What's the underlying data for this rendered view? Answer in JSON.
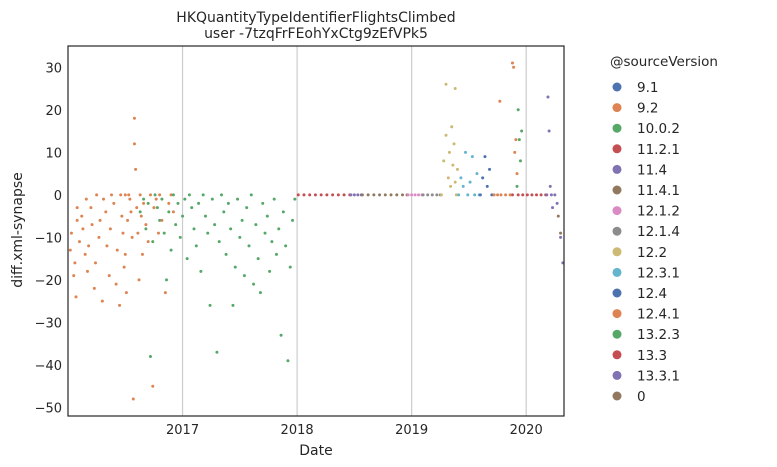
{
  "chart_data": {
    "type": "scatter",
    "title": "HKQuantityTypeIdentifierFlightsClimbed",
    "subtitle": "user -7tzqFrFEohYxCtg9zEfVPk5",
    "xlabel": "Date",
    "ylabel": "diff.xml-synapse",
    "xlim": [
      2016.0,
      2020.33
    ],
    "ylim": [
      -52,
      35
    ],
    "xticks": [
      2017,
      2018,
      2019,
      2020
    ],
    "yticks": [
      30,
      20,
      10,
      0,
      -10,
      -20,
      -30,
      -40,
      -50
    ],
    "vgrid": [
      2017,
      2018,
      2019,
      2020
    ],
    "legend_title": "@sourceVersion",
    "legend_position": "outside-right",
    "series": [
      {
        "name": "9.1",
        "color": "#4c72b0",
        "points": []
      },
      {
        "name": "9.2",
        "color": "#dd8452",
        "points": [
          [
            2016.02,
            -13
          ],
          [
            2016.03,
            -9
          ],
          [
            2016.05,
            -19
          ],
          [
            2016.06,
            -16
          ],
          [
            2016.07,
            -24
          ],
          [
            2016.08,
            -3
          ],
          [
            2016.08,
            -6
          ],
          [
            2016.1,
            -11
          ],
          [
            2016.12,
            -5
          ],
          [
            2016.13,
            -8
          ],
          [
            2016.15,
            -14
          ],
          [
            2016.16,
            -1
          ],
          [
            2016.17,
            -18
          ],
          [
            2016.18,
            -12
          ],
          [
            2016.2,
            -3
          ],
          [
            2016.21,
            -7
          ],
          [
            2016.23,
            -22
          ],
          [
            2016.24,
            -16
          ],
          [
            2016.25,
            0
          ],
          [
            2016.27,
            -10
          ],
          [
            2016.28,
            -6
          ],
          [
            2016.3,
            -25
          ],
          [
            2016.31,
            -1
          ],
          [
            2016.33,
            -4
          ],
          [
            2016.34,
            -12
          ],
          [
            2016.36,
            -19
          ],
          [
            2016.37,
            -8
          ],
          [
            2016.38,
            0
          ],
          [
            2016.4,
            -2
          ],
          [
            2016.42,
            -21
          ],
          [
            2016.43,
            -13
          ],
          [
            2016.45,
            -26
          ],
          [
            2016.46,
            0
          ],
          [
            2016.47,
            -5
          ],
          [
            2016.48,
            -9
          ],
          [
            2016.49,
            -17
          ],
          [
            2016.5,
            0
          ],
          [
            2016.5,
            -14
          ],
          [
            2016.51,
            -23
          ],
          [
            2016.52,
            -6
          ],
          [
            2016.53,
            0
          ],
          [
            2016.54,
            -1
          ],
          [
            2016.55,
            -4
          ],
          [
            2016.56,
            -10
          ],
          [
            2016.57,
            -48
          ],
          [
            2016.58,
            18
          ],
          [
            2016.58,
            12
          ],
          [
            2016.59,
            6
          ],
          [
            2016.6,
            -3
          ],
          [
            2016.61,
            -9
          ],
          [
            2016.62,
            -20
          ],
          [
            2016.63,
            0
          ],
          [
            2016.64,
            -5
          ],
          [
            2016.65,
            -14
          ],
          [
            2016.66,
            -2
          ],
          [
            2016.68,
            -7
          ],
          [
            2016.7,
            -11
          ],
          [
            2016.72,
            0
          ],
          [
            2016.74,
            -45
          ],
          [
            2016.75,
            -3
          ],
          [
            2016.77,
            -1
          ],
          [
            2016.79,
            -9
          ],
          [
            2016.8,
            0
          ],
          [
            2016.82,
            -6
          ],
          [
            2016.85,
            -23
          ],
          [
            2016.88,
            -2
          ],
          [
            2016.9,
            0
          ],
          [
            2016.92,
            -4
          ]
        ]
      },
      {
        "name": "10.0.2",
        "color": "#55a868",
        "points": [
          [
            2016.63,
            -4
          ],
          [
            2016.66,
            -1
          ],
          [
            2016.68,
            -8
          ],
          [
            2016.7,
            -2
          ],
          [
            2016.72,
            -38
          ],
          [
            2016.74,
            -11
          ],
          [
            2016.76,
            0
          ],
          [
            2016.78,
            -3
          ],
          [
            2016.8,
            -6
          ],
          [
            2016.82,
            -1
          ],
          [
            2016.84,
            -9
          ],
          [
            2016.86,
            -20
          ],
          [
            2016.88,
            -4
          ],
          [
            2016.9,
            -13
          ],
          [
            2016.92,
            0
          ],
          [
            2016.94,
            -7
          ],
          [
            2016.96,
            -2
          ],
          [
            2016.98,
            -10
          ],
          [
            2017.0,
            -5
          ],
          [
            2017.02,
            -1
          ],
          [
            2017.04,
            -15
          ],
          [
            2017.06,
            0
          ],
          [
            2017.08,
            -3
          ],
          [
            2017.1,
            -8
          ],
          [
            2017.12,
            -12
          ],
          [
            2017.14,
            -2
          ],
          [
            2017.16,
            -18
          ],
          [
            2017.18,
            0
          ],
          [
            2017.2,
            -5
          ],
          [
            2017.22,
            -9
          ],
          [
            2017.24,
            -26
          ],
          [
            2017.26,
            -1
          ],
          [
            2017.28,
            -7
          ],
          [
            2017.3,
            -37
          ],
          [
            2017.32,
            -11
          ],
          [
            2017.34,
            0
          ],
          [
            2017.36,
            -4
          ],
          [
            2017.38,
            -14
          ],
          [
            2017.4,
            -2
          ],
          [
            2017.42,
            -8
          ],
          [
            2017.44,
            -26
          ],
          [
            2017.46,
            -17
          ],
          [
            2017.48,
            -1
          ],
          [
            2017.5,
            -10
          ],
          [
            2017.52,
            -6
          ],
          [
            2017.54,
            -19
          ],
          [
            2017.56,
            -3
          ],
          [
            2017.58,
            -12
          ],
          [
            2017.6,
            0
          ],
          [
            2017.62,
            -21
          ],
          [
            2017.64,
            -7
          ],
          [
            2017.66,
            -15
          ],
          [
            2017.68,
            -23
          ],
          [
            2017.7,
            -2
          ],
          [
            2017.72,
            -9
          ],
          [
            2017.74,
            -5
          ],
          [
            2017.76,
            -18
          ],
          [
            2017.78,
            -11
          ],
          [
            2017.8,
            -1
          ],
          [
            2017.82,
            -14
          ],
          [
            2017.84,
            -8
          ],
          [
            2017.86,
            -33
          ],
          [
            2017.88,
            -4
          ],
          [
            2017.9,
            -12
          ],
          [
            2017.92,
            -39
          ],
          [
            2017.94,
            -17
          ],
          [
            2017.96,
            -6
          ],
          [
            2017.98,
            -1
          ]
        ]
      },
      {
        "name": "11.2.1",
        "color": "#c44e52",
        "points": [
          [
            2018.01,
            0
          ],
          [
            2018.06,
            0
          ],
          [
            2018.11,
            0
          ],
          [
            2018.16,
            0
          ],
          [
            2018.21,
            0
          ],
          [
            2018.26,
            0
          ],
          [
            2018.31,
            0
          ],
          [
            2018.36,
            0
          ],
          [
            2018.41,
            0
          ],
          [
            2018.46,
            0
          ],
          [
            2019.88,
            0
          ],
          [
            2019.93,
            0
          ]
        ]
      },
      {
        "name": "11.4",
        "color": "#8172b3",
        "points": [
          [
            2018.47,
            0
          ],
          [
            2018.5,
            0
          ],
          [
            2018.53,
            0
          ],
          [
            2018.56,
            0
          ]
        ]
      },
      {
        "name": "11.4.1",
        "color": "#937860",
        "points": [
          [
            2018.57,
            0
          ],
          [
            2018.62,
            0
          ],
          [
            2018.67,
            0
          ],
          [
            2018.72,
            0
          ],
          [
            2018.77,
            0
          ],
          [
            2018.82,
            0
          ],
          [
            2018.87,
            0
          ],
          [
            2018.92,
            0
          ],
          [
            2018.96,
            0
          ]
        ]
      },
      {
        "name": "12.1.2",
        "color": "#da8bc3",
        "points": [
          [
            2018.97,
            0
          ],
          [
            2019.0,
            0
          ],
          [
            2019.03,
            0
          ],
          [
            2019.06,
            0
          ],
          [
            2019.09,
            0
          ]
        ]
      },
      {
        "name": "12.1.4",
        "color": "#8c8c8c",
        "points": [
          [
            2019.1,
            0
          ],
          [
            2019.14,
            0
          ],
          [
            2019.18,
            0
          ],
          [
            2019.22,
            0
          ],
          [
            2019.25,
            0
          ]
        ]
      },
      {
        "name": "12.2",
        "color": "#ccb974",
        "points": [
          [
            2019.26,
            0
          ],
          [
            2019.28,
            8
          ],
          [
            2019.3,
            26
          ],
          [
            2019.3,
            14
          ],
          [
            2019.32,
            4
          ],
          [
            2019.33,
            10
          ],
          [
            2019.34,
            2
          ],
          [
            2019.35,
            16
          ],
          [
            2019.36,
            7
          ],
          [
            2019.37,
            12
          ],
          [
            2019.38,
            25
          ],
          [
            2019.38,
            3
          ],
          [
            2019.39,
            0
          ],
          [
            2019.4,
            6
          ]
        ]
      },
      {
        "name": "12.3.1",
        "color": "#64b5cd",
        "points": [
          [
            2019.41,
            0
          ],
          [
            2019.43,
            4
          ],
          [
            2019.45,
            2
          ],
          [
            2019.47,
            10
          ],
          [
            2019.49,
            0
          ],
          [
            2019.51,
            3
          ],
          [
            2019.53,
            9
          ],
          [
            2019.55,
            0
          ],
          [
            2019.57,
            5
          ],
          [
            2019.59,
            0
          ]
        ]
      },
      {
        "name": "12.4",
        "color": "#4c72b0",
        "points": [
          [
            2019.6,
            0
          ],
          [
            2019.62,
            4
          ],
          [
            2019.64,
            9
          ],
          [
            2019.66,
            2
          ],
          [
            2019.68,
            6
          ],
          [
            2019.7,
            0
          ]
        ]
      },
      {
        "name": "12.4.1",
        "color": "#dd8452",
        "points": [
          [
            2019.72,
            0
          ],
          [
            2019.75,
            0
          ],
          [
            2019.77,
            22
          ],
          [
            2019.78,
            0
          ],
          [
            2019.82,
            0
          ],
          [
            2019.86,
            0
          ],
          [
            2019.88,
            31
          ],
          [
            2019.89,
            30
          ],
          [
            2019.9,
            10
          ],
          [
            2019.91,
            13
          ],
          [
            2019.92,
            5
          ]
        ]
      },
      {
        "name": "13.2.3",
        "color": "#55a868",
        "points": [
          [
            2019.92,
            2
          ],
          [
            2019.93,
            20
          ],
          [
            2019.94,
            13
          ],
          [
            2019.95,
            8
          ],
          [
            2019.96,
            15
          ]
        ]
      },
      {
        "name": "13.3",
        "color": "#c44e52",
        "points": [
          [
            2019.97,
            0
          ],
          [
            2020.01,
            0
          ],
          [
            2020.05,
            0
          ],
          [
            2020.09,
            0
          ],
          [
            2020.13,
            0
          ],
          [
            2020.17,
            0
          ]
        ]
      },
      {
        "name": "13.3.1",
        "color": "#8172b3",
        "points": [
          [
            2020.18,
            0
          ],
          [
            2020.19,
            23
          ],
          [
            2020.2,
            15
          ],
          [
            2020.21,
            2
          ],
          [
            2020.22,
            0
          ],
          [
            2020.23,
            -3
          ],
          [
            2020.25,
            0
          ],
          [
            2020.27,
            -2
          ],
          [
            2020.3,
            -10
          ],
          [
            2020.32,
            -16
          ]
        ]
      },
      {
        "name": "0",
        "color": "#937860",
        "points": [
          [
            2020.28,
            -5
          ],
          [
            2020.3,
            -9
          ]
        ]
      }
    ]
  }
}
